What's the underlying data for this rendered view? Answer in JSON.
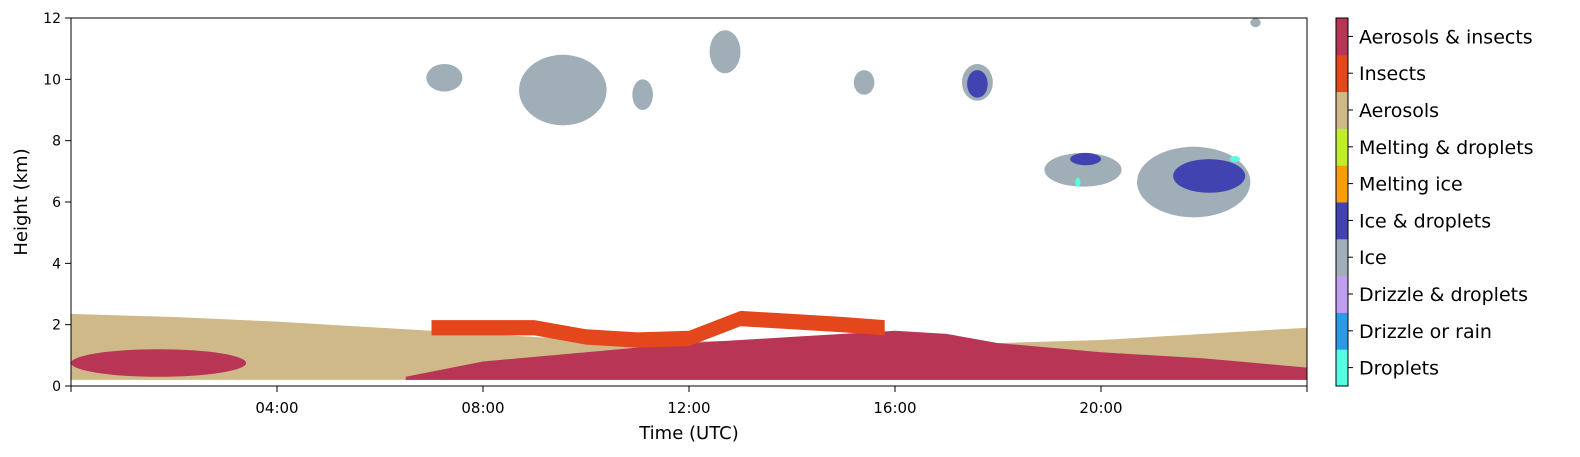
{
  "chart_data": {
    "type": "heatmap",
    "title": "",
    "xlabel": "Time (UTC)",
    "ylabel": "Height (km)",
    "xlim_hours": [
      0,
      24
    ],
    "ylim_km": [
      0,
      12
    ],
    "x_ticks": [
      {
        "hour": 0,
        "label": ""
      },
      {
        "hour": 4,
        "label": "04:00"
      },
      {
        "hour": 8,
        "label": "08:00"
      },
      {
        "hour": 12,
        "label": "12:00"
      },
      {
        "hour": 16,
        "label": "16:00"
      },
      {
        "hour": 20,
        "label": "20:00"
      },
      {
        "hour": 24,
        "label": ""
      }
    ],
    "y_ticks": [
      0,
      2,
      4,
      6,
      8,
      10,
      12
    ],
    "grid": false,
    "colorbar": {
      "position": "right",
      "categories": [
        {
          "label": "Droplets",
          "color": "#55ffe3"
        },
        {
          "label": "Drizzle or rain",
          "color": "#2b9be5"
        },
        {
          "label": "Drizzle & droplets",
          "color": "#c09ff0"
        },
        {
          "label": "Ice",
          "color": "#a0aeb8"
        },
        {
          "label": "Ice & droplets",
          "color": "#4043b0"
        },
        {
          "label": "Melting ice",
          "color": "#f79c0d"
        },
        {
          "label": "Melting & droplets",
          "color": "#c0ee2c"
        },
        {
          "label": "Aerosols",
          "color": "#cfb988"
        },
        {
          "label": "Insects",
          "color": "#e4471b"
        },
        {
          "label": "Aerosols & insects",
          "color": "#b83556"
        }
      ]
    },
    "regions": [
      {
        "class": "Aerosols",
        "x": [
          0,
          24
        ],
        "y_bottom": [
          0.2,
          0.2
        ],
        "y_top_points": [
          [
            0,
            2.35
          ],
          [
            2,
            2.25
          ],
          [
            4,
            2.1
          ],
          [
            6,
            1.9
          ],
          [
            8,
            1.7
          ],
          [
            10,
            1.5
          ],
          [
            12,
            1.45
          ],
          [
            14,
            1.5
          ],
          [
            16,
            1.6
          ],
          [
            18,
            1.4
          ],
          [
            20,
            1.5
          ],
          [
            22,
            1.7
          ],
          [
            24,
            1.9
          ]
        ]
      },
      {
        "class": "Aerosols & insects",
        "blobs": [
          {
            "x": [
              0,
              3.4
            ],
            "y": [
              0.3,
              1.2
            ]
          },
          {
            "x": [
              6.5,
              24
            ],
            "y_top_points": [
              [
                6.5,
                0.3
              ],
              [
                8,
                0.8
              ],
              [
                10,
                1.1
              ],
              [
                12,
                1.4
              ],
              [
                14,
                1.6
              ],
              [
                16,
                1.8
              ],
              [
                17,
                1.7
              ],
              [
                18,
                1.4
              ],
              [
                20,
                1.1
              ],
              [
                22,
                0.9
              ],
              [
                24,
                0.6
              ]
            ]
          }
        ]
      },
      {
        "class": "Insects",
        "x": [
          7,
          15.8
        ],
        "y_points": [
          [
            7,
            1.9
          ],
          [
            9,
            1.9
          ],
          [
            10,
            1.6
          ],
          [
            11,
            1.5
          ],
          [
            12,
            1.55
          ],
          [
            13,
            2.2
          ],
          [
            14,
            2.1
          ],
          [
            15,
            2.0
          ],
          [
            15.8,
            1.9
          ]
        ]
      },
      {
        "class": "Ice",
        "blobs": [
          {
            "x": [
              6.9,
              7.6
            ],
            "y": [
              9.6,
              10.5
            ]
          },
          {
            "x": [
              8.7,
              10.4
            ],
            "y": [
              8.5,
              10.8
            ]
          },
          {
            "x": [
              10.9,
              11.3
            ],
            "y": [
              9.0,
              10.0
            ]
          },
          {
            "x": [
              12.4,
              13.0
            ],
            "y": [
              10.2,
              11.6
            ]
          },
          {
            "x": [
              15.2,
              15.6
            ],
            "y": [
              9.5,
              10.3
            ]
          },
          {
            "x": [
              17.3,
              17.9
            ],
            "y": [
              9.3,
              10.5
            ]
          },
          {
            "x": [
              18.9,
              20.4
            ],
            "y": [
              6.5,
              7.6
            ]
          },
          {
            "x": [
              20.7,
              22.9
            ],
            "y": [
              5.5,
              7.8
            ]
          },
          {
            "x": [
              22.9,
              23.1
            ],
            "y": [
              11.7,
              12.0
            ]
          }
        ]
      },
      {
        "class": "Ice & droplets",
        "blobs": [
          {
            "x": [
              17.4,
              17.8
            ],
            "y": [
              9.4,
              10.3
            ]
          },
          {
            "x": [
              19.4,
              20.0
            ],
            "y": [
              7.2,
              7.6
            ]
          },
          {
            "x": [
              21.4,
              22.8
            ],
            "y": [
              6.3,
              7.4
            ]
          }
        ]
      },
      {
        "class": "Droplets",
        "blobs": [
          {
            "x": [
              19.5,
              19.6
            ],
            "y": [
              6.5,
              6.8
            ]
          },
          {
            "x": [
              22.5,
              22.7
            ],
            "y": [
              7.3,
              7.5
            ]
          }
        ]
      }
    ]
  }
}
